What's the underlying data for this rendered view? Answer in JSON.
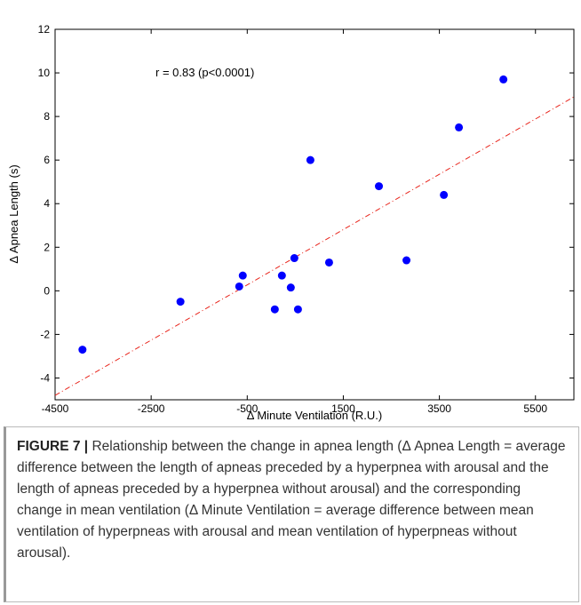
{
  "chart_data": {
    "type": "scatter",
    "annotation": "r = 0.83 (p<0.0001)",
    "xlabel": "Δ Minute Ventilation (R.U.)",
    "ylabel": "Δ Apnea Length (s)",
    "color": "#0000ff",
    "x": [
      -3930,
      -1890,
      -667,
      -593,
      74,
      222,
      407,
      481,
      556,
      815,
      1204,
      2241,
      2815,
      3593,
      3907,
      4833
    ],
    "y": [
      -2.7,
      -0.5,
      0.2,
      0.7,
      -0.85,
      0.7,
      0.15,
      1.5,
      -0.85,
      6.0,
      1.3,
      4.8,
      1.4,
      4.4,
      7.5,
      9.7
    ],
    "fit_line": {
      "color": "#e8251c",
      "x": [
        -4500,
        6300
      ],
      "y": [
        -4.8,
        8.9
      ]
    },
    "xlim": [
      -4500,
      6300
    ],
    "ylim": [
      -5,
      12
    ],
    "xticks": [
      -4500,
      -2500,
      -500,
      1500,
      3500,
      5500
    ],
    "yticks": [
      -4,
      -2,
      0,
      2,
      4,
      6,
      8,
      10,
      12
    ]
  },
  "caption": {
    "label": "FIGURE 7 |",
    "text": "Relationship between the change in apnea length (Δ Apnea Length = average difference between the length of apneas preceded by a hyperpnea with arousal and the length of apneas preceded by a hyperpnea without arousal) and the corresponding change in mean ventilation (Δ Minute Ventilation = average difference between mean ventilation of hyperpneas with arousal and mean ventilation of hyperpneas without arousal)."
  }
}
